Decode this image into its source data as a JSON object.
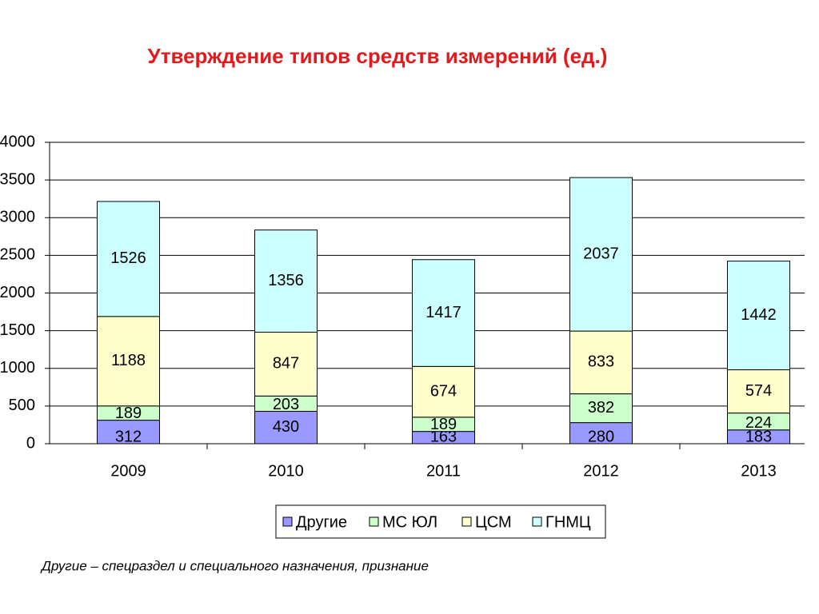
{
  "chart_data": {
    "type": "stacked_bar",
    "title": "Утверждение типов средств измерений (ед.)",
    "categories": [
      "2009",
      "2010",
      "2011",
      "2012",
      "2013"
    ],
    "series": [
      {
        "name": "Другие",
        "color": "#9999ff",
        "values": [
          312,
          430,
          163,
          280,
          183
        ]
      },
      {
        "name": "МС ЮЛ",
        "color": "#ccffcc",
        "values": [
          189,
          203,
          189,
          382,
          224
        ]
      },
      {
        "name": "ЦСМ",
        "color": "#ffffcc",
        "values": [
          1188,
          847,
          674,
          833,
          574
        ]
      },
      {
        "name": "ГНМЦ",
        "color": "#ccffff",
        "values": [
          1526,
          1356,
          1417,
          2037,
          1442
        ]
      }
    ],
    "ylim": [
      0,
      4000
    ],
    "yticks": [
      0,
      500,
      1000,
      1500,
      2000,
      2500,
      3000,
      3500,
      4000
    ],
    "grid": true,
    "legend": "bottom",
    "note": "Другие – спецраздел и специального назначения, признание"
  }
}
